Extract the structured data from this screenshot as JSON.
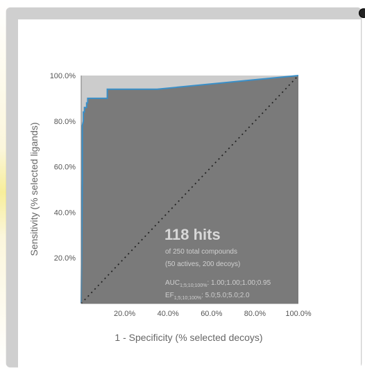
{
  "chart_data": {
    "type": "line",
    "xlabel": "1 - Specificity (% selected decoys)",
    "ylabel": "Sensitivity (% selected ligands)",
    "xlim": [
      0,
      100
    ],
    "ylim": [
      0,
      100
    ],
    "xticks": [
      "20.0%",
      "40.0%",
      "60.0%",
      "80.0%",
      "100.0%"
    ],
    "xtick_values": [
      20,
      40,
      60,
      80,
      100
    ],
    "yticks": [
      "20.0%",
      "40.0%",
      "60.0%",
      "80.0%",
      "100.0%"
    ],
    "ytick_values": [
      20,
      40,
      60,
      80,
      100
    ],
    "series": [
      {
        "x": [
          0,
          0.5,
          0.5,
          1,
          1,
          1.5,
          1.5,
          2.5,
          2.5,
          3,
          3,
          12,
          12,
          35,
          100
        ],
        "y": [
          0,
          54,
          78,
          80,
          84,
          84,
          86,
          86,
          88,
          88,
          90,
          90,
          94,
          94,
          100
        ]
      },
      {
        "x": [
          0,
          100
        ],
        "y": [
          0,
          100
        ]
      }
    ],
    "annotation": {
      "hits": "118 hits",
      "total": "of 250 total compounds",
      "breakdown": "(50 actives, 200 decoys)",
      "auc_label": "AUC",
      "auc_sub": "1;5;10;100%",
      "auc_values": ": 1.00;1.00;1.00;0.95",
      "ef_label": "EF",
      "ef_sub": "1;5;10;100%",
      "ef_values": ": 5.0;5.0;5.0;2.0"
    },
    "colors": {
      "plot_fill": "#7a7a7a",
      "above_fill": "#cccccc",
      "curve": "#3a8fc8",
      "diagonal": "#222222"
    }
  }
}
